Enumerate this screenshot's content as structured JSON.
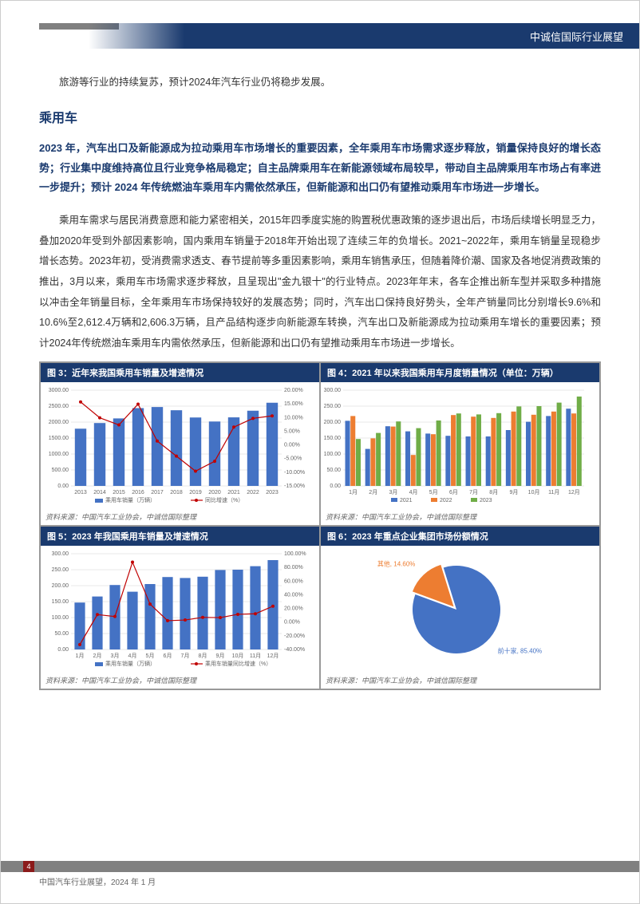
{
  "header": {
    "brand_text": "中诚信国际行业展望"
  },
  "intro": "旅游等行业的持续复苏，预计2024年汽车行业仍将稳步发展。",
  "section_title": "乘用车",
  "highlight": "2023 年，汽车出口及新能源成为拉动乘用车市场增长的重要因素，全年乘用车市场需求逐步释放，销量保持良好的增长态势；行业集中度维持高位且行业竞争格局稳定；自主品牌乘用车在新能源领域布局较早，带动自主品牌乘用车市场占有率进一步提升；预计 2024 年传统燃油车乘用车内需依然承压，但新能源和出口仍有望推动乘用车市场进一步增长。",
  "body": "乘用车需求与居民消费意愿和能力紧密相关，2015年四季度实施的购置税优惠政策的逐步退出后，市场后续增长明显乏力，叠加2020年受到外部因素影响，国内乘用车销量于2018年开始出现了连续三年的负增长。2021~2022年，乘用车销量呈现稳步增长态势。2023年初，受消费需求透支、春节提前等多重因素影响，乘用车销售承压，但随着降价潮、国家及各地促消费政策的推出，3月以来，乘用车市场需求逐步释放，且呈现出\"金九银十\"的行业特点。2023年年末，各车企推出新车型并采取多种措施以冲击全年销量目标，全年乘用车市场保持较好的发展态势；同时，汽车出口保持良好势头，全年产销量同比分别增长9.6%和10.6%至2,612.4万辆和2,606.3万辆，且产品结构逐步向新能源车转换，汽车出口及新能源成为拉动乘用车增长的重要因素；预计2024年传统燃油车乘用车内需依然承压，但新能源和出口仍有望推动乘用车市场进一步增长。",
  "charts": {
    "chart3": {
      "title": "图 3：近年来我国乘用车销量及增速情况",
      "type": "bar+line",
      "x_labels": [
        "2013",
        "2014",
        "2015",
        "2016",
        "2017",
        "2018",
        "2019",
        "2020",
        "2021",
        "2022",
        "2023"
      ],
      "bar_values": [
        1793,
        1970,
        2115,
        2438,
        2472,
        2371,
        2144,
        2018,
        2148,
        2356,
        2606
      ],
      "line_values": [
        15.7,
        9.9,
        7.3,
        14.9,
        1.4,
        -4.1,
        -9.6,
        -6.0,
        6.5,
        9.7,
        10.6
      ],
      "y_left_max": 3000,
      "y_left_min": 0,
      "y_left_step": 500,
      "y_right_max": 20,
      "y_right_min": -15,
      "y_right_step": 5,
      "bar_color": "#4472c4",
      "line_color": "#c00000",
      "legend": [
        "乘用车销量（万辆）",
        "同比增速（%）"
      ],
      "grid_color": "#d0d0d0",
      "font_size": 7,
      "source": "资料来源：中国汽车工业协会，中诚信国际整理"
    },
    "chart4": {
      "title": "图 4：2021 年以来我国乘用车月度销量情况（单位：万辆）",
      "type": "grouped-bar",
      "x_labels": [
        "1月",
        "2月",
        "3月",
        "4月",
        "5月",
        "6月",
        "7月",
        "8月",
        "9月",
        "10月",
        "11月",
        "12月"
      ],
      "series": [
        {
          "name": "2021",
          "color": "#4472c4",
          "values": [
            204,
            116,
            187,
            171,
            164,
            157,
            155,
            155,
            175,
            201,
            219,
            242
          ]
        },
        {
          "name": "2022",
          "color": "#ed7d31",
          "values": [
            219,
            149,
            186,
            97,
            162,
            222,
            217,
            213,
            233,
            223,
            233,
            227
          ]
        },
        {
          "name": "2023",
          "color": "#70ad47",
          "values": [
            147,
            166,
            202,
            181,
            205,
            227,
            224,
            228,
            249,
            250,
            261,
            280
          ]
        }
      ],
      "y_max": 300,
      "y_min": 0,
      "y_step": 50,
      "grid_color": "#d0d0d0",
      "font_size": 7,
      "source": "资料来源：中国汽车工业协会，中诚信国际整理"
    },
    "chart5": {
      "title": "图 5：2023 年我国乘用车销量及增速情况",
      "type": "bar+line",
      "x_labels": [
        "1月",
        "2月",
        "3月",
        "4月",
        "5月",
        "6月",
        "7月",
        "8月",
        "9月",
        "10月",
        "11月",
        "12月"
      ],
      "bar_values": [
        147,
        166,
        202,
        181,
        205,
        227,
        224,
        228,
        249,
        250,
        261,
        280
      ],
      "line_values": [
        -32.9,
        11.0,
        8.2,
        87.7,
        26.4,
        2.1,
        3.1,
        6.9,
        6.6,
        11.4,
        12.2,
        23.3
      ],
      "y_left_max": 300,
      "y_left_min": 0,
      "y_left_step": 50,
      "y_right_max": 100,
      "y_right_min": -40,
      "y_right_step": 20,
      "bar_color": "#4472c4",
      "line_color": "#c00000",
      "legend": [
        "乘用车销量（万辆）",
        "乘用车销量同比增速（%）"
      ],
      "grid_color": "#d0d0d0",
      "font_size": 7,
      "source": "资料来源：中国汽车工业协会，中诚信国际整理"
    },
    "chart6": {
      "title": "图 6：2023 年重点企业集团市场份额情况",
      "type": "pie",
      "slices": [
        {
          "label": "前十家, 85.40%",
          "value": 85.4,
          "color": "#4472c4"
        },
        {
          "label": "其他, 14.60%",
          "value": 14.6,
          "color": "#ed7d31"
        }
      ],
      "label_color": "#4472c4",
      "font_size": 8,
      "source": "资料来源：中国汽车工业协会，中诚信国际整理"
    }
  },
  "footer": {
    "page_num": "4",
    "text": "中国汽车行业展望，2024 年 1 月"
  }
}
